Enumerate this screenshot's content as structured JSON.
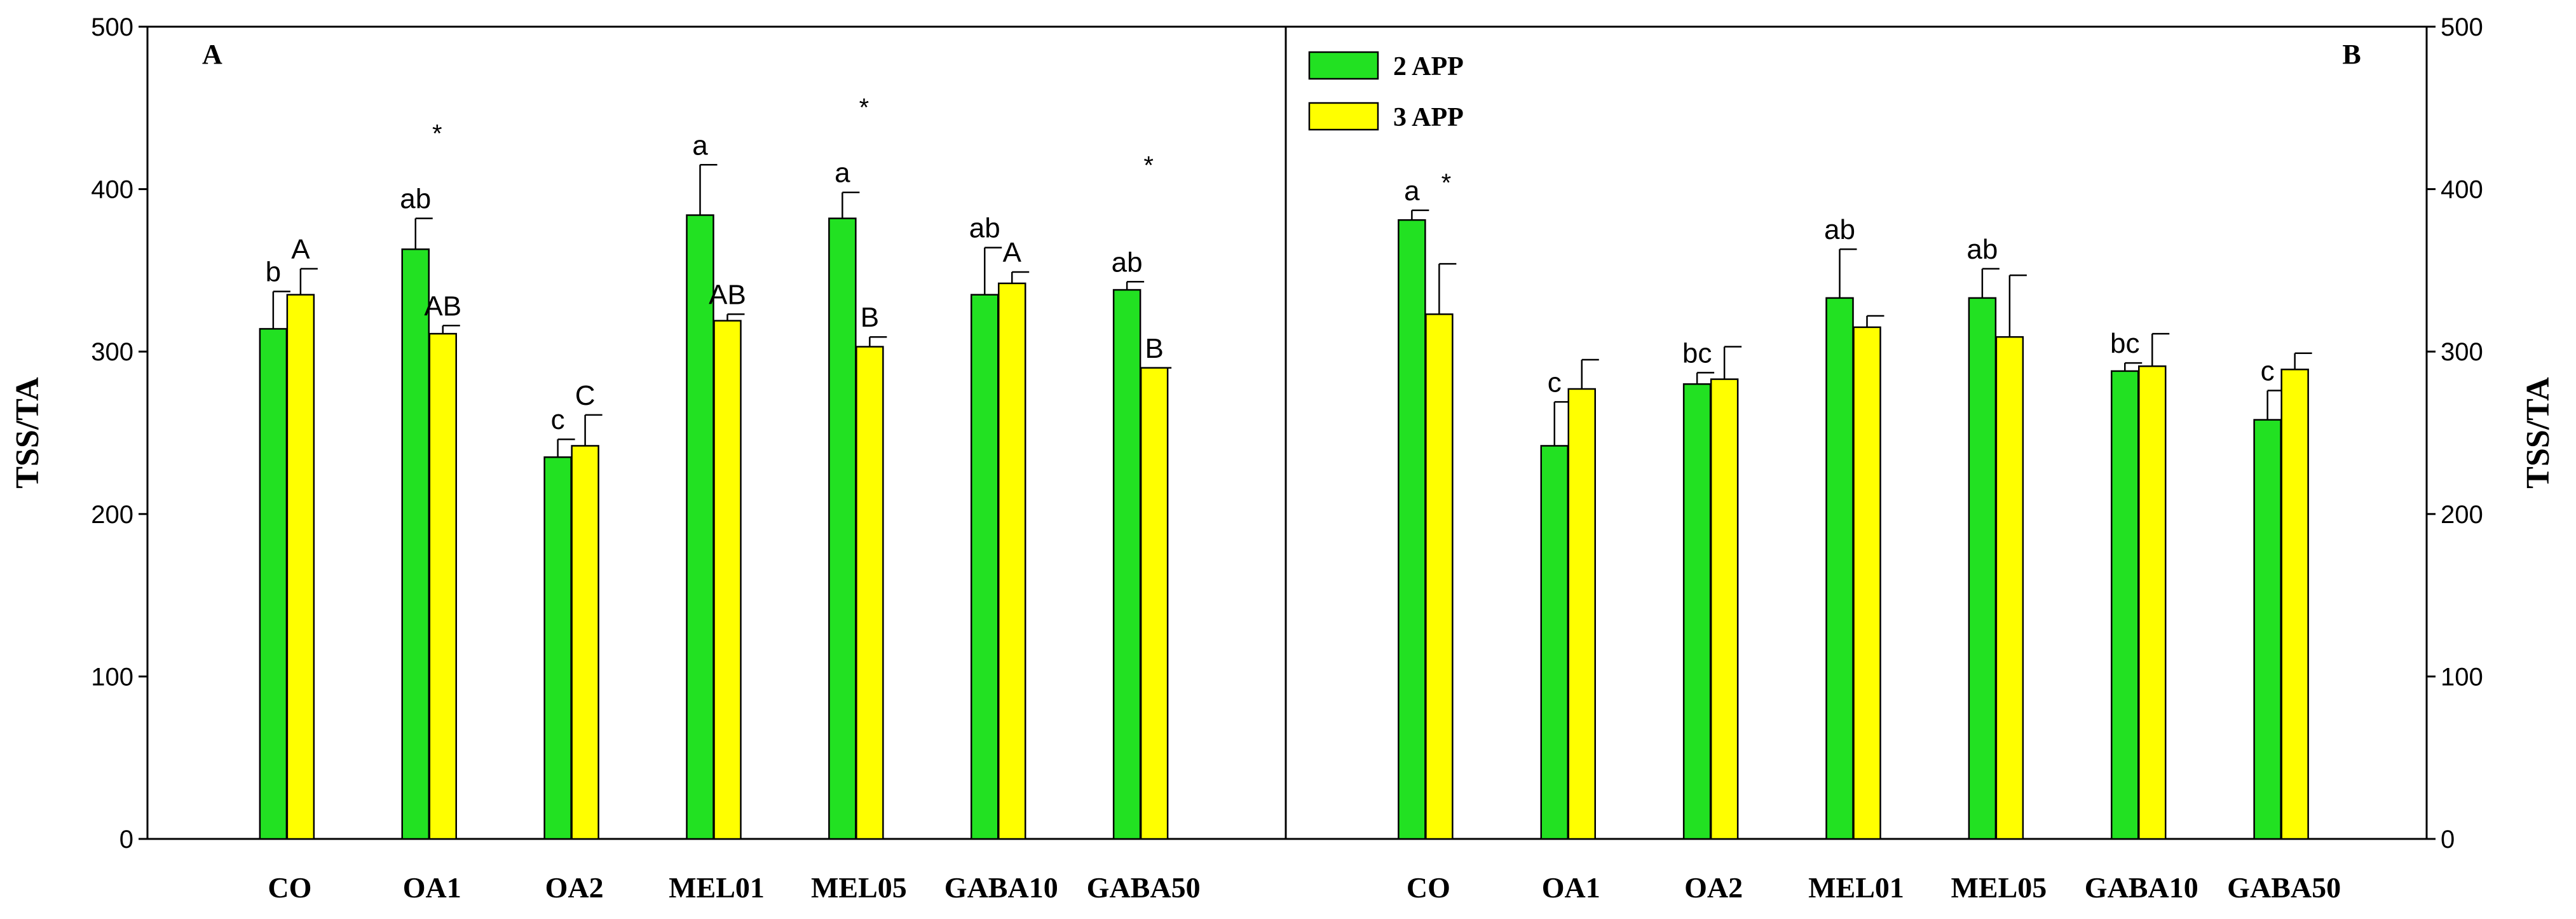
{
  "colors": {
    "series_2app": "#22e122",
    "series_3app": "#ffff00",
    "stroke": "#000000"
  },
  "chart_data": [
    {
      "type": "bar",
      "panel_label": "A",
      "ylabel": "TSS/TA",
      "xlabel": "",
      "ylim": [
        0,
        500
      ],
      "yticks": [
        0,
        100,
        200,
        300,
        400,
        500
      ],
      "y_axis_side": "left",
      "categories": [
        "CO",
        "OA1",
        "OA2",
        "MEL01",
        "MEL05",
        "GABA10",
        "GABA50"
      ],
      "series": [
        {
          "name": "2 APP",
          "values": [
            314,
            363,
            235,
            384,
            382,
            335,
            338
          ],
          "errors": [
            23,
            19,
            11,
            31,
            16,
            29,
            5
          ],
          "letters": [
            "b",
            "ab",
            "c",
            "a",
            "a",
            "ab",
            "ab"
          ]
        },
        {
          "name": "3 APP",
          "values": [
            335,
            311,
            242,
            319,
            303,
            342,
            290
          ],
          "errors": [
            16,
            5,
            19,
            4,
            6,
            7,
            0
          ],
          "letters": [
            "A",
            "AB",
            "C",
            "AB",
            "B",
            "A",
            "B"
          ]
        }
      ],
      "stars": [
        "",
        "*",
        "",
        "",
        "*",
        "",
        "*"
      ]
    },
    {
      "type": "bar",
      "panel_label": "B",
      "ylabel": "TSS/TA",
      "xlabel": "",
      "ylim": [
        0,
        500
      ],
      "yticks": [
        0,
        100,
        200,
        300,
        400,
        500
      ],
      "y_axis_side": "right",
      "legend_position": "top-left",
      "categories": [
        "CO",
        "OA1",
        "OA2",
        "MEL01",
        "MEL05",
        "GABA10",
        "GABA50"
      ],
      "series": [
        {
          "name": "2 APP",
          "values": [
            381,
            242,
            280,
            333,
            333,
            288,
            258
          ],
          "errors": [
            6,
            27,
            7,
            30,
            18,
            5,
            18
          ],
          "letters": [
            "a",
            "c",
            "bc",
            "ab",
            "ab",
            "bc",
            "c"
          ]
        },
        {
          "name": "3 APP",
          "values": [
            323,
            277,
            283,
            315,
            309,
            291,
            289
          ],
          "errors": [
            31,
            18,
            20,
            7,
            38,
            20,
            10
          ],
          "letters": [
            "",
            "",
            "",
            "",
            "",
            "",
            ""
          ]
        }
      ],
      "stars": [
        "*",
        "",
        "",
        "",
        "",
        "",
        ""
      ]
    }
  ]
}
